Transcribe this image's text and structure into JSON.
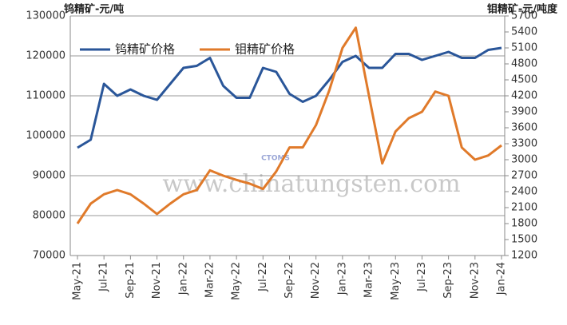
{
  "chart_data": {
    "type": "line",
    "y_label": "钨精矿-元/吨",
    "y2_label": "钼精矿-元/吨度",
    "watermark": "www.chinatungsten.com",
    "logo": "CTOMS",
    "categories": [
      "May-21",
      null,
      "Jul-21",
      null,
      "Sep-21",
      null,
      "Nov-21",
      null,
      "Jan-22",
      null,
      "Mar-22",
      null,
      "May-22",
      null,
      "Jul-22",
      null,
      "Sep-22",
      null,
      "Nov-22",
      null,
      "Jan-23",
      null,
      "Mar-23",
      null,
      "May-23",
      null,
      "Jul-23",
      null,
      "Sep-23",
      null,
      "Nov-23",
      null,
      "Jan-24"
    ],
    "series": [
      {
        "name": "钨精矿价格",
        "color": "#2a5699",
        "values": [
          97000,
          99000,
          113000,
          110000,
          111600,
          110000,
          109000,
          113000,
          117000,
          117500,
          119500,
          112500,
          109500,
          109500,
          117000,
          116000,
          110500,
          108500,
          110000,
          114000,
          118500,
          120000,
          117000,
          117000,
          120500,
          120500,
          119000,
          120000,
          121000,
          119500,
          119500,
          121500,
          122000
        ]
      },
      {
        "name": "钼精矿价格",
        "color": "#e07a2a",
        "axis": "y2",
        "values": [
          1800,
          2175,
          2350,
          2430,
          2350,
          2175,
          1980,
          2175,
          2350,
          2430,
          2800,
          2700,
          2620,
          2550,
          2450,
          2780,
          3230,
          3230,
          3650,
          4300,
          5100,
          5480,
          4200,
          2930,
          3530,
          3780,
          3900,
          4280,
          4200,
          3230,
          3000,
          3080,
          3270
        ]
      }
    ],
    "ylim": [
      70000,
      130000
    ],
    "yticks": [
      70000,
      80000,
      90000,
      100000,
      110000,
      120000,
      130000
    ],
    "y2lim": [
      1200,
      5700
    ],
    "y2ticks": [
      1200,
      1500,
      1800,
      2100,
      2400,
      2700,
      3000,
      3300,
      3600,
      3900,
      4200,
      4500,
      4800,
      5100,
      5400,
      5700
    ],
    "grid": true,
    "legend": "top-left"
  }
}
